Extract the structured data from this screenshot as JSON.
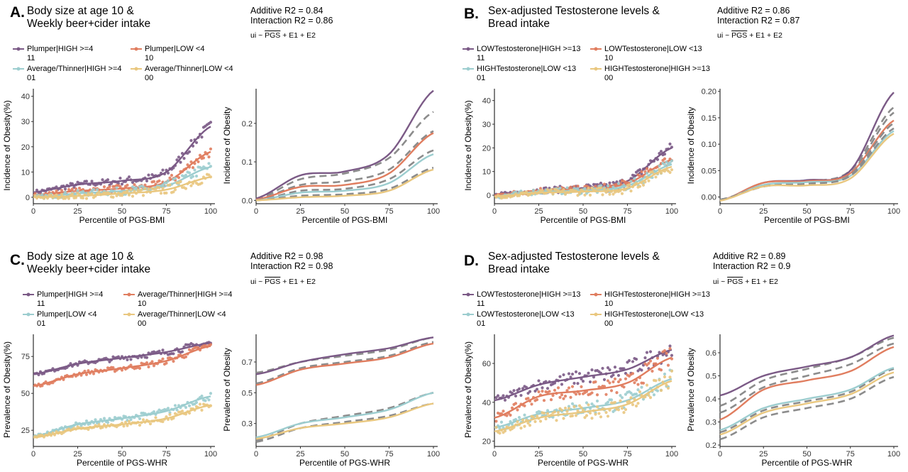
{
  "colors": {
    "purple": "#7B5A86",
    "orange": "#E07D5F",
    "teal": "#9CCDCF",
    "yellow": "#E9C77F",
    "dash": "#8C8C8C"
  },
  "panels": [
    {
      "id": "A",
      "letter": "A.",
      "title_line1": "Body size at age 10 &",
      "title_line2": "Weekly beer+cider intake",
      "additive": "Additive R2 = 0.84",
      "interaction": "Interaction R2 = 0.86",
      "formula_prefix": "ui ~ ",
      "formula_pgs": "PGS",
      "formula_suffix": " + E1 + E2",
      "legend": [
        {
          "label": "Plumper|HIGH >=4",
          "code": "11",
          "color": "#7B5A86"
        },
        {
          "label": "Plumper|LOW <4",
          "code": "10",
          "color": "#E07D5F"
        },
        {
          "label": "Average/Thinner|HIGH >=4",
          "code": "01",
          "color": "#9CCDCF"
        },
        {
          "label": "Average/Thinner|LOW <4",
          "code": "00",
          "color": "#E9C77F"
        }
      ]
    },
    {
      "id": "B",
      "letter": "B.",
      "title_line1": "Sex-adjusted Testosterone levels &",
      "title_line2": "Bread intake",
      "additive": "Additive R2 = 0.86",
      "interaction": "Interaction R2 = 0.87",
      "formula_prefix": "ui ~ ",
      "formula_pgs": "PGS",
      "formula_suffix": " + E1 + E2",
      "legend": [
        {
          "label": "LOWTestosterone|HIGH >=13",
          "code": "11",
          "color": "#7B5A86"
        },
        {
          "label": "LOWTestosterone|LOW <13",
          "code": "10",
          "color": "#E07D5F"
        },
        {
          "label": "HIGHTestosterone|LOW <13",
          "code": "01",
          "color": "#9CCDCF"
        },
        {
          "label": "HIGHTestosterone|HIGH >=13",
          "code": "00",
          "color": "#E9C77F"
        }
      ]
    },
    {
      "id": "C",
      "letter": "C.",
      "title_line1": "Body size at age 10 &",
      "title_line2": "Weekly beer+cider intake",
      "additive": "Additive R2 = 0.98",
      "interaction": "Interaction R2 = 0.98",
      "formula_prefix": "ui ~ ",
      "formula_pgs": "PGS",
      "formula_suffix": " + E1 + E2",
      "legend": [
        {
          "label": "Plumper|HIGH >=4",
          "code": "11",
          "color": "#7B5A86"
        },
        {
          "label": "Average/Thinner|HIGH >=4",
          "code": "10",
          "color": "#E07D5F"
        },
        {
          "label": "Plumper|LOW <4",
          "code": "01",
          "color": "#9CCDCF"
        },
        {
          "label": "Average/Thinner|LOW <4",
          "code": "00",
          "color": "#E9C77F"
        }
      ]
    },
    {
      "id": "D",
      "letter": "D.",
      "title_line1": "Sex-adjusted Testosterone levels &",
      "title_line2": "Bread intake",
      "additive": "Additive R2 = 0.89",
      "interaction": "Interaction R2 = 0.9",
      "formula_prefix": "ui ~ ",
      "formula_pgs": "PGS",
      "formula_suffix": " + E1 + E2",
      "legend": [
        {
          "label": "LOWTestosterone|HIGH >=13",
          "code": "11",
          "color": "#7B5A86"
        },
        {
          "label": "HIGHTestosterone|HIGH >=13",
          "code": "10",
          "color": "#E07D5F"
        },
        {
          "label": "LOWTestosterone|LOW <13",
          "code": "01",
          "color": "#9CCDCF"
        },
        {
          "label": "HIGHTestosterone|LOW <13",
          "code": "00",
          "color": "#E9C77F"
        }
      ]
    }
  ],
  "chart_data": [
    {
      "panel": "A",
      "side": "left",
      "type": "scatter",
      "xlabel": "Percentile of PGS-BMI",
      "ylabel": "Incidence of Obesity(%)",
      "xlim": [
        0,
        100
      ],
      "ylim": [
        -2,
        43
      ],
      "xticks": [
        0,
        25,
        50,
        75,
        100
      ],
      "yticks": [
        0,
        10,
        20,
        30,
        40
      ],
      "series": [
        {
          "code": "11",
          "fit": [
            2,
            5,
            6.5,
            10,
            28
          ]
        },
        {
          "code": "10",
          "fit": [
            1,
            2.5,
            3.5,
            6,
            18
          ]
        },
        {
          "code": "01",
          "fit": [
            0,
            1.5,
            2.5,
            4.5,
            12
          ]
        },
        {
          "code": "00",
          "fit": [
            0,
            0.5,
            1.5,
            3,
            8
          ]
        }
      ]
    },
    {
      "panel": "A",
      "side": "right",
      "type": "line",
      "xlabel": "Percentile of PGS-BMI",
      "ylabel": "Incidence of Obesity",
      "xlim": [
        0,
        100
      ],
      "ylim": [
        -0.005,
        0.29
      ],
      "xticks": [
        0,
        25,
        50,
        75,
        100
      ],
      "yticks": [
        0.0,
        0.1,
        0.2
      ],
      "series": [
        {
          "code": "11",
          "fit": [
            0.005,
            0.065,
            0.075,
            0.12,
            0.285
          ],
          "additive": [
            0.003,
            0.055,
            0.07,
            0.11,
            0.23
          ]
        },
        {
          "code": "10",
          "fit": [
            0.002,
            0.035,
            0.04,
            0.07,
            0.175
          ],
          "additive": [
            0.002,
            0.04,
            0.05,
            0.08,
            0.18
          ]
        },
        {
          "code": "01",
          "fit": [
            0.0,
            0.02,
            0.025,
            0.045,
            0.12
          ],
          "additive": [
            0.0,
            0.025,
            0.03,
            0.055,
            0.13
          ]
        },
        {
          "code": "00",
          "fit": [
            0.0,
            0.008,
            0.012,
            0.025,
            0.08
          ],
          "additive": [
            0.0,
            0.012,
            0.016,
            0.03,
            0.085
          ]
        }
      ]
    },
    {
      "panel": "B",
      "side": "left",
      "type": "scatter",
      "xlabel": "Percentile of PGS-BMI",
      "ylabel": "Incidence of Obesity(%)",
      "xlim": [
        0,
        100
      ],
      "ylim": [
        -3,
        45
      ],
      "xticks": [
        0,
        25,
        50,
        75,
        100
      ],
      "yticks": [
        0,
        10,
        20,
        30,
        40
      ],
      "series": [
        {
          "code": "11",
          "fit": [
            0,
            2,
            3,
            6,
            20
          ]
        },
        {
          "code": "10",
          "fit": [
            0,
            2,
            2.5,
            5,
            15
          ]
        },
        {
          "code": "01",
          "fit": [
            -0.5,
            1.5,
            2,
            4,
            13
          ]
        },
        {
          "code": "00",
          "fit": [
            -0.5,
            1,
            1.5,
            3,
            12
          ]
        }
      ]
    },
    {
      "panel": "B",
      "side": "right",
      "type": "line",
      "xlabel": "Percentile of PGS-BMI",
      "ylabel": "Incidence of Obesity",
      "xlim": [
        0,
        100
      ],
      "ylim": [
        -0.01,
        0.205
      ],
      "xticks": [
        0,
        25,
        50,
        75,
        100
      ],
      "yticks": [
        0.0,
        0.05,
        0.1,
        0.15,
        0.2
      ],
      "series": [
        {
          "code": "11",
          "fit": [
            -0.007,
            0.027,
            0.032,
            0.05,
            0.198
          ],
          "additive": [
            -0.005,
            0.02,
            0.03,
            0.05,
            0.17
          ]
        },
        {
          "code": "10",
          "fit": [
            -0.007,
            0.027,
            0.03,
            0.045,
            0.145
          ],
          "additive": [
            -0.005,
            0.02,
            0.028,
            0.045,
            0.16
          ]
        },
        {
          "code": "01",
          "fit": [
            -0.007,
            0.023,
            0.028,
            0.04,
            0.125
          ],
          "additive": [
            -0.005,
            0.02,
            0.027,
            0.042,
            0.14
          ]
        },
        {
          "code": "00",
          "fit": [
            -0.007,
            0.02,
            0.022,
            0.035,
            0.12
          ],
          "additive": [
            -0.005,
            0.02,
            0.025,
            0.04,
            0.13
          ]
        }
      ]
    },
    {
      "panel": "C",
      "side": "left",
      "type": "scatter",
      "xlabel": "Percentile of PGS-WHR",
      "ylabel": "Prevalence of Obesity(%)",
      "xlim": [
        0,
        100
      ],
      "ylim": [
        15,
        90
      ],
      "xticks": [
        0,
        25,
        50,
        75,
        100
      ],
      "yticks": [
        25,
        50,
        75
      ],
      "series": [
        {
          "code": "11",
          "fit": [
            63,
            70,
            74,
            78,
            84
          ]
        },
        {
          "code": "10",
          "fit": [
            55,
            63,
            67,
            72,
            82
          ]
        },
        {
          "code": "01",
          "fit": [
            21,
            29,
            33,
            38,
            48
          ]
        },
        {
          "code": "00",
          "fit": [
            20,
            26,
            29,
            33,
            42
          ]
        }
      ]
    },
    {
      "panel": "C",
      "side": "right",
      "type": "line",
      "xlabel": "Percentile of PGS-WHR",
      "ylabel": "Prevalence of Obesity",
      "xlim": [
        0,
        100
      ],
      "ylim": [
        0.16,
        0.88
      ],
      "xticks": [
        0,
        25,
        50,
        75,
        100
      ],
      "yticks": [
        0.3,
        0.5,
        0.7
      ],
      "series": [
        {
          "code": "11",
          "fit": [
            0.62,
            0.7,
            0.75,
            0.79,
            0.86
          ],
          "additive": [
            0.63,
            0.7,
            0.74,
            0.78,
            0.86
          ]
        },
        {
          "code": "10",
          "fit": [
            0.55,
            0.65,
            0.69,
            0.73,
            0.82
          ],
          "additive": [
            0.56,
            0.66,
            0.7,
            0.74,
            0.83
          ]
        },
        {
          "code": "01",
          "fit": [
            0.21,
            0.3,
            0.34,
            0.39,
            0.5
          ],
          "additive": [
            0.19,
            0.3,
            0.35,
            0.4,
            0.5
          ]
        },
        {
          "code": "00",
          "fit": [
            0.2,
            0.27,
            0.3,
            0.34,
            0.43
          ],
          "additive": [
            0.18,
            0.27,
            0.31,
            0.35,
            0.43
          ]
        }
      ]
    },
    {
      "panel": "D",
      "side": "left",
      "type": "scatter",
      "xlabel": "Percentile of PGS-WHR",
      "ylabel": "Prevalence of Obesity(%)",
      "xlim": [
        0,
        100
      ],
      "ylim": [
        18,
        75
      ],
      "xticks": [
        0,
        25,
        50,
        75,
        100
      ],
      "yticks": [
        20,
        40,
        60
      ],
      "series": [
        {
          "code": "11",
          "fit": [
            41,
            49,
            53,
            57,
            67
          ]
        },
        {
          "code": "10",
          "fit": [
            32,
            43,
            46,
            50,
            63
          ]
        },
        {
          "code": "01",
          "fit": [
            27,
            34,
            37,
            41,
            52
          ]
        },
        {
          "code": "00",
          "fit": [
            25,
            32,
            35,
            39,
            51
          ]
        }
      ]
    },
    {
      "panel": "D",
      "side": "right",
      "type": "line",
      "xlabel": "Percentile of PGS-WHR",
      "ylabel": "Prevalence of Obesity",
      "xlim": [
        0,
        100
      ],
      "ylim": [
        0.2,
        0.68
      ],
      "xticks": [
        0,
        25,
        50,
        75,
        100
      ],
      "yticks": [
        0.2,
        0.3,
        0.4,
        0.5,
        0.6
      ],
      "series": [
        {
          "code": "11",
          "fit": [
            0.415,
            0.5,
            0.54,
            0.58,
            0.675
          ],
          "additive": [
            0.37,
            0.48,
            0.53,
            0.58,
            0.665
          ]
        },
        {
          "code": "10",
          "fit": [
            0.31,
            0.44,
            0.48,
            0.52,
            0.625
          ],
          "additive": [
            0.34,
            0.45,
            0.5,
            0.55,
            0.64
          ]
        },
        {
          "code": "01",
          "fit": [
            0.265,
            0.36,
            0.4,
            0.44,
            0.535
          ],
          "additive": [
            0.255,
            0.35,
            0.39,
            0.43,
            0.53
          ]
        },
        {
          "code": "00",
          "fit": [
            0.245,
            0.34,
            0.38,
            0.42,
            0.515
          ],
          "additive": [
            0.225,
            0.32,
            0.36,
            0.4,
            0.495
          ]
        }
      ]
    }
  ]
}
